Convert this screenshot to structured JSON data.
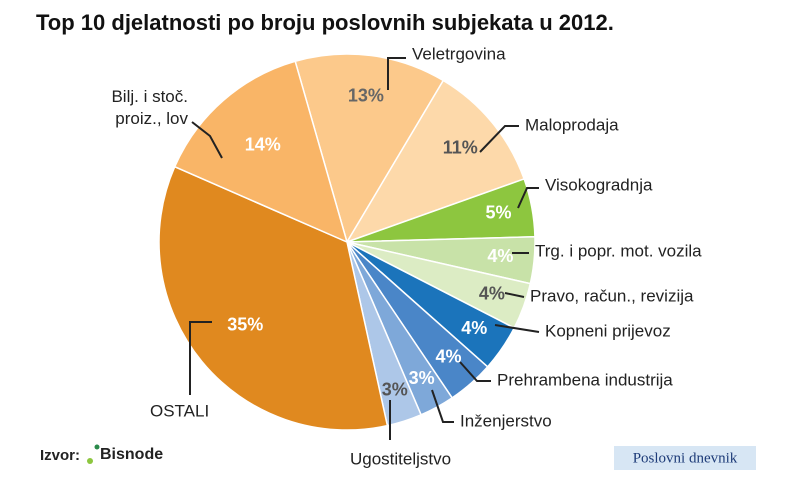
{
  "chart_data": {
    "type": "pie",
    "title": "Top 10 djelatnosti po broju poslovnih subjekata u 2012.",
    "categories": [
      "Veletrgovina",
      "Maloprodaja",
      "Visokogradnja",
      "Trg. i popr. mot. vozila",
      "Pravo, račun., revizija",
      "Kopneni prijevoz",
      "Prehrambena industrija",
      "Inženjerstvo",
      "Ugostiteljstvo",
      "OSTALI",
      "Bilj. i stoč. proiz., lov"
    ],
    "values": [
      13,
      11,
      5,
      4,
      4,
      4,
      4,
      3,
      3,
      35,
      14
    ],
    "value_labels": [
      "13%",
      "11%",
      "5%",
      "4%",
      "4%",
      "4%",
      "4%",
      "3%",
      "3%",
      "35%",
      "14%"
    ],
    "colors": [
      "#fcc98b",
      "#fdd9aa",
      "#8dc63f",
      "#c8e2a8",
      "#dcecc4",
      "#1b74bb",
      "#4a86c8",
      "#7ea8d9",
      "#adc7e8",
      "#e0891f",
      "#f9b567"
    ]
  },
  "source_label": "Izvor:",
  "source": "Bisnode",
  "publisher": "Poslovni dnevnik"
}
